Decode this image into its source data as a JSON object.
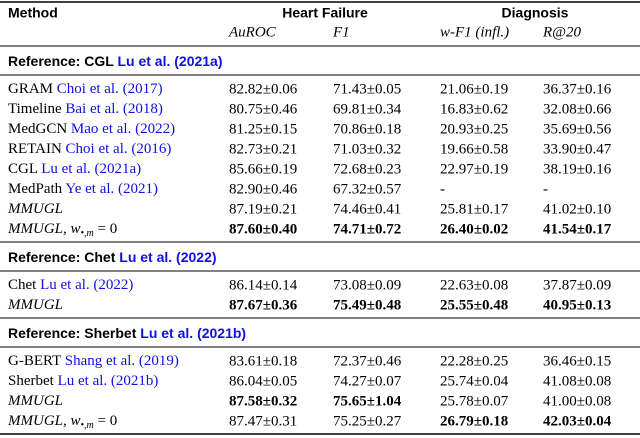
{
  "header": {
    "method": "Method",
    "groups": [
      "Heart Failure",
      "Diagnosis"
    ],
    "columns": [
      "AuROC",
      "F1",
      "w-F1 (infl.)",
      "R@20"
    ]
  },
  "sections": [
    {
      "title": "Reference: CGL",
      "citation": "Lu et al. (2021a)",
      "rows": [
        {
          "method": "GRAM",
          "citation": "Choi et al. (2017)",
          "cells": [
            "82.82±0.06",
            "71.43±0.05",
            "21.06±0.19",
            "36.37±0.16"
          ],
          "bold": [
            false,
            false,
            false,
            false
          ]
        },
        {
          "method": "Timeline",
          "citation": "Bai et al. (2018)",
          "cells": [
            "80.75±0.46",
            "69.81±0.34",
            "16.83±0.62",
            "32.08±0.66"
          ],
          "bold": [
            false,
            false,
            false,
            false
          ]
        },
        {
          "method": "MedGCN",
          "citation": "Mao et al. (2022)",
          "cells": [
            "81.25±0.15",
            "70.86±0.18",
            "20.93±0.25",
            "35.69±0.56"
          ],
          "bold": [
            false,
            false,
            false,
            false
          ]
        },
        {
          "method": "RETAIN",
          "citation": "Choi et al. (2016)",
          "cells": [
            "82.73±0.21",
            "71.03±0.32",
            "19.66±0.58",
            "33.90±0.47"
          ],
          "bold": [
            false,
            false,
            false,
            false
          ]
        },
        {
          "method": "CGL",
          "citation": "Lu et al. (2021a)",
          "cells": [
            "85.66±0.19",
            "72.68±0.23",
            "22.97±0.19",
            "38.19±0.16"
          ],
          "bold": [
            false,
            false,
            false,
            false
          ]
        },
        {
          "method": "MedPath",
          "citation": "Ye et al. (2021)",
          "cells": [
            "82.90±0.46",
            "67.32±0.57",
            "-",
            "-"
          ],
          "bold": [
            false,
            false,
            false,
            false
          ]
        },
        {
          "method": "MMUGL",
          "italic": true,
          "cells": [
            "87.19±0.21",
            "74.46±0.41",
            "25.81±0.17",
            "41.02±0.10"
          ],
          "bold": [
            false,
            false,
            false,
            false
          ]
        },
        {
          "method": "MMUGL",
          "italic": true,
          "suffix": ", w",
          "sub": "•,m",
          "tail": " = 0",
          "cells": [
            "87.60±0.40",
            "74.71±0.72",
            "26.40±0.02",
            "41.54±0.17"
          ],
          "bold": [
            true,
            true,
            true,
            true
          ]
        }
      ]
    },
    {
      "title": "Reference: Chet",
      "citation": "Lu et al. (2022)",
      "rows": [
        {
          "method": "Chet",
          "citation": "Lu et al. (2022)",
          "cells": [
            "86.14±0.14",
            "73.08±0.09",
            "22.63±0.08",
            "37.87±0.09"
          ],
          "bold": [
            false,
            false,
            false,
            false
          ]
        },
        {
          "method": "MMUGL",
          "italic": true,
          "cells": [
            "87.67±0.36",
            "75.49±0.48",
            "25.55±0.48",
            "40.95±0.13"
          ],
          "bold": [
            true,
            true,
            true,
            true
          ]
        }
      ]
    },
    {
      "title": "Reference: Sherbet",
      "citation": "Lu et al. (2021b)",
      "rows": [
        {
          "method": "G-BERT",
          "citation": "Shang et al. (2019)",
          "cells": [
            "83.61±0.18",
            "72.37±0.46",
            "22.28±0.25",
            "36.46±0.15"
          ],
          "bold": [
            false,
            false,
            false,
            false
          ]
        },
        {
          "method": "Sherbet",
          "citation": "Lu et al. (2021b)",
          "cells": [
            "86.04±0.05",
            "74.27±0.07",
            "25.74±0.04",
            "41.08±0.08"
          ],
          "bold": [
            false,
            false,
            false,
            false
          ]
        },
        {
          "method": "MMUGL",
          "italic": true,
          "cells": [
            "87.58±0.32",
            "75.65±1.04",
            "25.78±0.07",
            "41.00±0.08"
          ],
          "bold": [
            true,
            true,
            false,
            false
          ]
        },
        {
          "method": "MMUGL",
          "italic": true,
          "suffix": ", w",
          "sub": "•,m",
          "tail": " = 0",
          "cells": [
            "87.47±0.31",
            "75.25±0.27",
            "26.79±0.18",
            "42.03±0.04"
          ],
          "bold": [
            false,
            false,
            true,
            true
          ]
        }
      ]
    }
  ]
}
